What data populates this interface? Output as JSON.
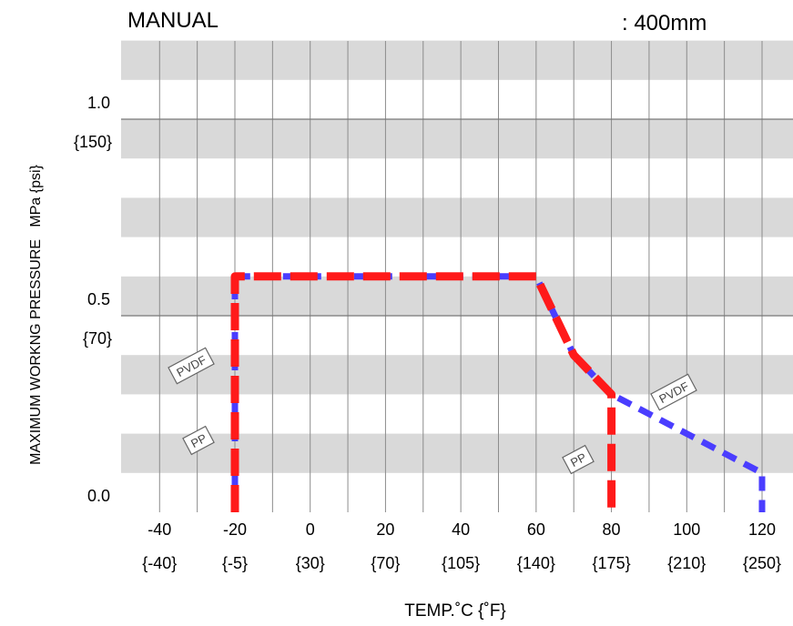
{
  "header": {
    "title": "MANUAL",
    "size_label": ": 400mm"
  },
  "colors": {
    "pp": "#ff1a1a",
    "pvdf": "#4a3dff",
    "band": "#d9d9d9",
    "grid": "#8c8c8c"
  },
  "chart_data": {
    "type": "line",
    "xlabel": "TEMP.˚C {˚F}",
    "ylabel": "MAXIMUM WORKNG PRESSURE   MPa {psi}",
    "xlim": [
      -50,
      125
    ],
    "ylim": [
      0,
      1.2
    ],
    "x_ticks": [
      {
        "c": "-40",
        "f": "{-40}"
      },
      {
        "c": "-20",
        "f": "{-5}"
      },
      {
        "c": "0",
        "f": "{30}"
      },
      {
        "c": "20",
        "f": "{70}"
      },
      {
        "c": "40",
        "f": "{105}"
      },
      {
        "c": "60",
        "f": "{140}"
      },
      {
        "c": "80",
        "f": "{175}"
      },
      {
        "c": "100",
        "f": "{210}"
      },
      {
        "c": "120",
        "f": "{250}"
      }
    ],
    "y_ticks": [
      {
        "value": 1.0,
        "label": "1.0",
        "alt": "{150}"
      },
      {
        "value": 0.5,
        "label": "0.5",
        "alt": "{70}"
      },
      {
        "value": 0.0,
        "label": "0.0",
        "alt": ""
      }
    ],
    "grid": true,
    "series": [
      {
        "name": "PVDF",
        "x": [
          -20,
          -20,
          60,
          70,
          80,
          120,
          120
        ],
        "y": [
          0.0,
          0.6,
          0.6,
          0.4,
          0.3,
          0.1,
          0.0
        ]
      },
      {
        "name": "PP",
        "x": [
          -20,
          -20,
          60,
          70,
          80,
          80
        ],
        "y": [
          0.0,
          0.6,
          0.6,
          0.4,
          0.3,
          0.0
        ]
      }
    ],
    "annotations": [
      {
        "text": "PVDF",
        "series": "PVDF"
      },
      {
        "text": "PP",
        "series": "PP"
      },
      {
        "text": "PP",
        "series": "PP"
      },
      {
        "text": "PVDF",
        "series": "PVDF"
      }
    ]
  }
}
